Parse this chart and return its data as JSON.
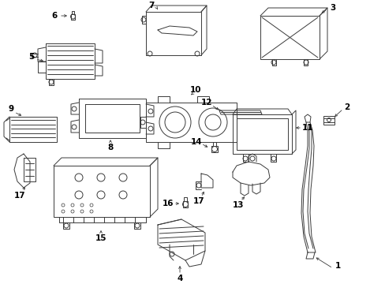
{
  "bg_color": "#ffffff",
  "line_color": "#3a3a3a",
  "text_color": "#000000",
  "fig_width": 4.89,
  "fig_height": 3.6,
  "dpi": 100
}
